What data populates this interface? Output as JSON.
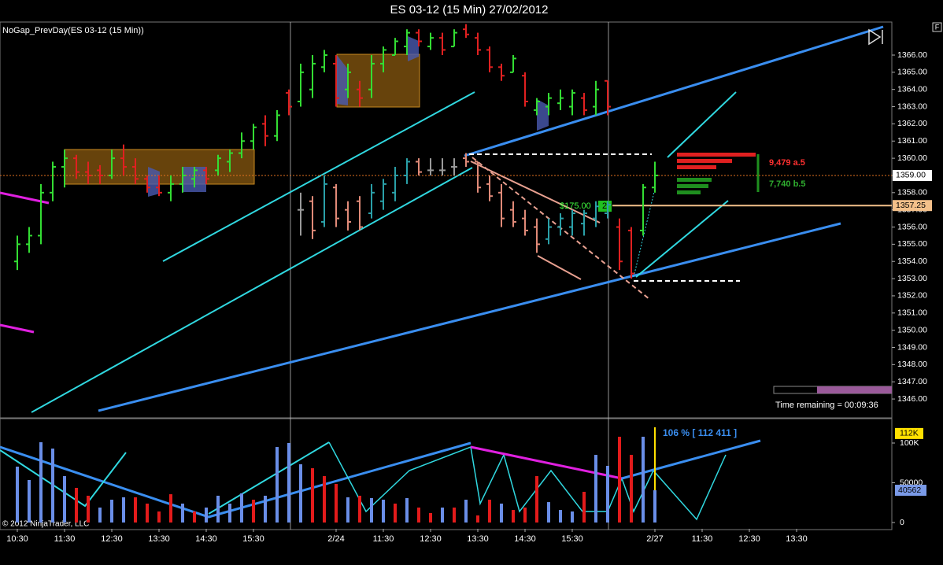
{
  "chart_data": {
    "type": "ohlc",
    "title": "ES 03-12 (15 Min)  27/02/2012",
    "indicator_label": "NoGap_PrevDay(ES 03-12 (15 Min))",
    "categories": [
      "10:30",
      null,
      null,
      null,
      "11:30",
      null,
      null,
      null,
      "12:30",
      null,
      null,
      null,
      "13:30",
      null,
      null,
      null,
      "14:30",
      null,
      null,
      null,
      "15:30",
      null,
      null,
      null,
      null,
      null,
      null,
      "2/24",
      null,
      null,
      null,
      "11:30",
      null,
      null,
      null,
      "12:30",
      null,
      null,
      null,
      "13:30",
      null,
      null,
      null,
      "14:30",
      null,
      null,
      null,
      "15:30",
      null,
      null,
      null,
      null,
      null,
      null,
      "2/27",
      null,
      null,
      null,
      "11:30",
      null,
      null,
      null,
      "12:30",
      null,
      null,
      null,
      "13:30"
    ],
    "bars": {
      "up_color": "#33dd33",
      "down_color": "#e02020",
      "flat_color": "#aaaaaa",
      "values": [
        [
          1354,
          1355.5,
          1353.5,
          1355
        ],
        [
          1355,
          1356,
          1354.5,
          1355.5
        ],
        [
          1355.5,
          1358.5,
          1355,
          1358
        ],
        [
          1358,
          1359.8,
          1357.5,
          1359.5
        ],
        [
          1359.5,
          1360.5,
          1358.3,
          1360
        ],
        [
          1360,
          1360.2,
          1358.8,
          1359.2
        ],
        [
          1359.2,
          1359.8,
          1358.5,
          1359
        ],
        [
          1359.3,
          1359.6,
          1358.5,
          1359
        ],
        [
          1359,
          1360.5,
          1358.8,
          1360
        ],
        [
          1360,
          1360.8,
          1359,
          1359.5
        ],
        [
          1359.5,
          1360,
          1358.5,
          1358.8
        ],
        [
          1358.8,
          1359,
          1358,
          1358.3
        ],
        [
          1358.3,
          1359,
          1357.8,
          1358
        ],
        [
          1358,
          1359,
          1357.5,
          1358.5
        ],
        [
          1358.5,
          1359.5,
          1358,
          1359
        ],
        [
          1358.8,
          1359.5,
          1358.3,
          1359.3
        ],
        [
          1359.3,
          1359.5,
          1358.5,
          1358.8
        ],
        [
          1359.3,
          1360.2,
          1359,
          1360
        ],
        [
          1359.8,
          1360.5,
          1359.2,
          1360.3
        ],
        [
          1360.3,
          1361.5,
          1360,
          1361
        ],
        [
          1361,
          1362,
          1360.5,
          1361.8
        ],
        [
          1362,
          1362.5,
          1360.7,
          1361.3
        ],
        [
          1361.3,
          1362.8,
          1361,
          1362.5
        ],
        [
          1363.8,
          1364,
          1362.5,
          1363
        ],
        [
          1363.3,
          1365.5,
          1363,
          1365
        ],
        [
          1364,
          1366,
          1363.5,
          1365.5
        ],
        [
          1365.3,
          1366.3,
          1365,
          1366
        ],
        [
          1365.5,
          1366,
          1363,
          1363.5
        ],
        [
          1364,
          1365.5,
          1363.5,
          1365
        ],
        [
          1364,
          1364.5,
          1363,
          1363.5
        ],
        [
          1364,
          1366,
          1363.5,
          1365.5
        ],
        [
          1365.5,
          1366.5,
          1365,
          1366.3
        ],
        [
          1366,
          1367,
          1366,
          1366.8
        ],
        [
          1366.5,
          1367.5,
          1366,
          1367.3
        ],
        [
          1367.3,
          1367.5,
          1366.5,
          1366.8
        ],
        [
          1366.5,
          1367.3,
          1366.3,
          1367
        ],
        [
          1367,
          1367.3,
          1366,
          1366.3
        ],
        [
          1366.5,
          1367.5,
          1366.5,
          1367.3
        ],
        [
          1367.5,
          1367.8,
          1367,
          1367.2
        ],
        [
          1367,
          1367.3,
          1366,
          1366.3
        ],
        [
          1366.3,
          1366.5,
          1365,
          1365.3
        ],
        [
          1365.3,
          1365.5,
          1364.5,
          1364.8
        ],
        [
          1365,
          1366,
          1365,
          1365.8
        ],
        [
          1364.8,
          1365,
          1363,
          1363.3
        ],
        [
          1362.8,
          1363.5,
          1362.5,
          1363.3
        ],
        [
          1363,
          1363.8,
          1362.5,
          1363.5
        ],
        [
          1363.2,
          1364,
          1362.8,
          1363.5
        ],
        [
          1363,
          1364,
          1362.5,
          1363.8
        ],
        [
          1363.5,
          1363.8,
          1362.5,
          1362.8
        ],
        [
          1363,
          1364.5,
          1362.5,
          1364
        ],
        [
          1364.5,
          1364.5,
          1362.5,
          1363
        ],
        [
          1356,
          1356.5,
          1353.5,
          1354
        ],
        [
          1355.8,
          1356,
          1353,
          1353.3
        ],
        [
          1355.8,
          1358.5,
          1355.5,
          1358.3
        ],
        [
          1358.3,
          1359.8,
          1358,
          1359
        ],
        null,
        null,
        null,
        null,
        null,
        null,
        null,
        null,
        null,
        null,
        null,
        null
      ]
    },
    "overlay_bars": {
      "up_color": "#2aa0a8",
      "down_color": "#e08a78",
      "flat_color": "#9a9a9a",
      "values": [
        null,
        null,
        null,
        null,
        null,
        null,
        null,
        null,
        null,
        null,
        null,
        null,
        null,
        null,
        null,
        null,
        null,
        null,
        null,
        null,
        null,
        null,
        null,
        null,
        [
          1357,
          1358,
          1355.5,
          1357
        ],
        [
          1357.5,
          1357.8,
          1355.3,
          1355.8
        ],
        [
          1356.3,
          1359,
          1356,
          1358.5
        ],
        [
          1358.3,
          1358.5,
          1356,
          1356.5
        ],
        [
          1357,
          1357.5,
          1355.8,
          1356.3
        ],
        [
          1357.5,
          1357.8,
          1355.8,
          1356
        ],
        [
          1356.8,
          1358.5,
          1356.5,
          1358
        ],
        [
          1357.5,
          1358.8,
          1357,
          1358.5
        ],
        [
          1358,
          1359.5,
          1357.5,
          1359
        ],
        [
          1359,
          1360,
          1358.5,
          1359.8
        ],
        [
          1359.8,
          1360,
          1359,
          1359.2
        ],
        [
          1359.3,
          1360,
          1359,
          1359.3
        ],
        [
          1359.3,
          1360,
          1359,
          1359.3
        ],
        [
          1359.5,
          1360,
          1359,
          1359.5
        ],
        [
          1360,
          1360.3,
          1359.5,
          1359.8
        ],
        [
          1359.8,
          1359.8,
          1358,
          1358.3
        ],
        [
          1358.5,
          1359,
          1357.5,
          1357.8
        ],
        [
          1358,
          1358.5,
          1356,
          1356.5
        ],
        [
          1357,
          1357.5,
          1356,
          1356.3
        ],
        [
          1356.5,
          1357,
          1355.5,
          1355.8
        ],
        [
          1356,
          1356.5,
          1354.5,
          1355
        ],
        [
          1355.3,
          1356.5,
          1355,
          1356
        ],
        [
          1356,
          1356.8,
          1355.5,
          1356.5
        ],
        [
          1356,
          1357,
          1355.5,
          1356.8
        ],
        [
          1356.2,
          1357,
          1355.5,
          1356.8
        ],
        [
          1356.5,
          1357.5,
          1356,
          1357.2
        ],
        [
          1356.8,
          1357.5,
          1356.5,
          1357.3
        ],
        null,
        null,
        null,
        null,
        null,
        null,
        null,
        null,
        null,
        null,
        null,
        null,
        null,
        null,
        null,
        null
      ]
    },
    "ylim": [
      1344.95,
      1367.83
    ],
    "yticks": [
      {
        "value": 1346,
        "label": "1346.00"
      },
      {
        "value": 1347,
        "label": "1347.00"
      },
      {
        "value": 1348,
        "label": "1348.00"
      },
      {
        "value": 1349,
        "label": "1349.00"
      },
      {
        "value": 1350,
        "label": "1350.00"
      },
      {
        "value": 1351,
        "label": "1351.00"
      },
      {
        "value": 1352,
        "label": "1352.00"
      },
      {
        "value": 1353,
        "label": "1353.00"
      },
      {
        "value": 1354,
        "label": "1354.00"
      },
      {
        "value": 1355,
        "label": "1355.00"
      },
      {
        "value": 1356,
        "label": "1356.00"
      },
      {
        "value": 1357,
        "label": "1357.00"
      },
      {
        "value": 1358,
        "label": "1358.00"
      },
      {
        "value": 1359,
        "label": "1359.00"
      },
      {
        "value": 1360,
        "label": "1360.00"
      },
      {
        "value": 1361,
        "label": "1361.00"
      },
      {
        "value": 1362,
        "label": "1362.00"
      },
      {
        "value": 1363,
        "label": "1363.00"
      },
      {
        "value": 1364,
        "label": "1364.00"
      },
      {
        "value": 1365,
        "label": "1365.00"
      },
      {
        "value": 1366,
        "label": "1366.00"
      }
    ],
    "last_price": {
      "value": 1359,
      "label": "1359.00"
    },
    "order_price": {
      "value": 1357.25,
      "label": "1357.25"
    },
    "order_label": "$175.00",
    "order_qty": 2,
    "dom_ask": "9,479 a.5",
    "dom_bid": "7,740 b.5",
    "time_remaining": "Time remaining = 00:09:36",
    "copyright": "© 2012 NinjaTrader, LLC",
    "button": "F",
    "volume": {
      "values": [
        70300,
        53500,
        101000,
        93000,
        58400,
        43600,
        33700,
        18800,
        28700,
        31700,
        31700,
        23800,
        13900,
        35600,
        23800,
        13900,
        18800,
        33700,
        23800,
        36600,
        28700,
        33700,
        95000,
        100000,
        73300,
        68300,
        58400,
        48500,
        31700,
        33700,
        30700,
        28700,
        23800,
        30700,
        18800,
        11900,
        18800,
        18800,
        28700,
        8900,
        28700,
        23800,
        15800,
        18800,
        58400,
        25700,
        15800,
        13900,
        38600,
        85100,
        71300,
        107900,
        85100,
        107900,
        40562,
        null,
        null,
        null,
        null,
        null,
        null,
        null,
        null,
        null,
        null,
        null,
        null
      ],
      "colors": [
        "#6a8ee8",
        "#6a8ee8",
        "#6a8ee8",
        "#6a8ee8",
        "#6a8ee8",
        "#e31b1b",
        "#e31b1b",
        "#6a8ee8",
        "#6a8ee8",
        "#6a8ee8",
        "#e31b1b",
        "#e31b1b",
        "#e31b1b",
        "#e31b1b",
        "#6a8ee8",
        "#e31b1b",
        "#6a8ee8",
        "#6a8ee8",
        "#6a8ee8",
        "#6a8ee8",
        "#e31b1b",
        "#6a8ee8",
        "#6a8ee8",
        "#6a8ee8",
        "#6a8ee8",
        "#e31b1b",
        "#e31b1b",
        "#e31b1b",
        "#6a8ee8",
        "#e31b1b",
        "#6a8ee8",
        "#6a8ee8",
        "#e31b1b",
        "#6a8ee8",
        "#e31b1b",
        "#e31b1b",
        "#6a8ee8",
        "#e31b1b",
        "#6a8ee8",
        "#e31b1b",
        "#e31b1b",
        "#6a8ee8",
        "#e31b1b",
        "#e31b1b",
        "#e31b1b",
        "#6a8ee8",
        "#6a8ee8",
        "#6a8ee8",
        "#e31b1b",
        "#6a8ee8",
        "#6a8ee8",
        "#e31b1b",
        "#e31b1b",
        "#6a8ee8",
        "#6a8ee8",
        null,
        null,
        null,
        null,
        null,
        null,
        null,
        null,
        null,
        null,
        null,
        null
      ],
      "ylim": [
        -7900,
        129700
      ],
      "yticks": [
        0,
        50000,
        {
          "value": 100000,
          "label": "100K"
        }
      ],
      "tag": {
        "value": 112000,
        "label": "112K"
      },
      "annotation": "106 % [ 112 411 ]"
    }
  }
}
